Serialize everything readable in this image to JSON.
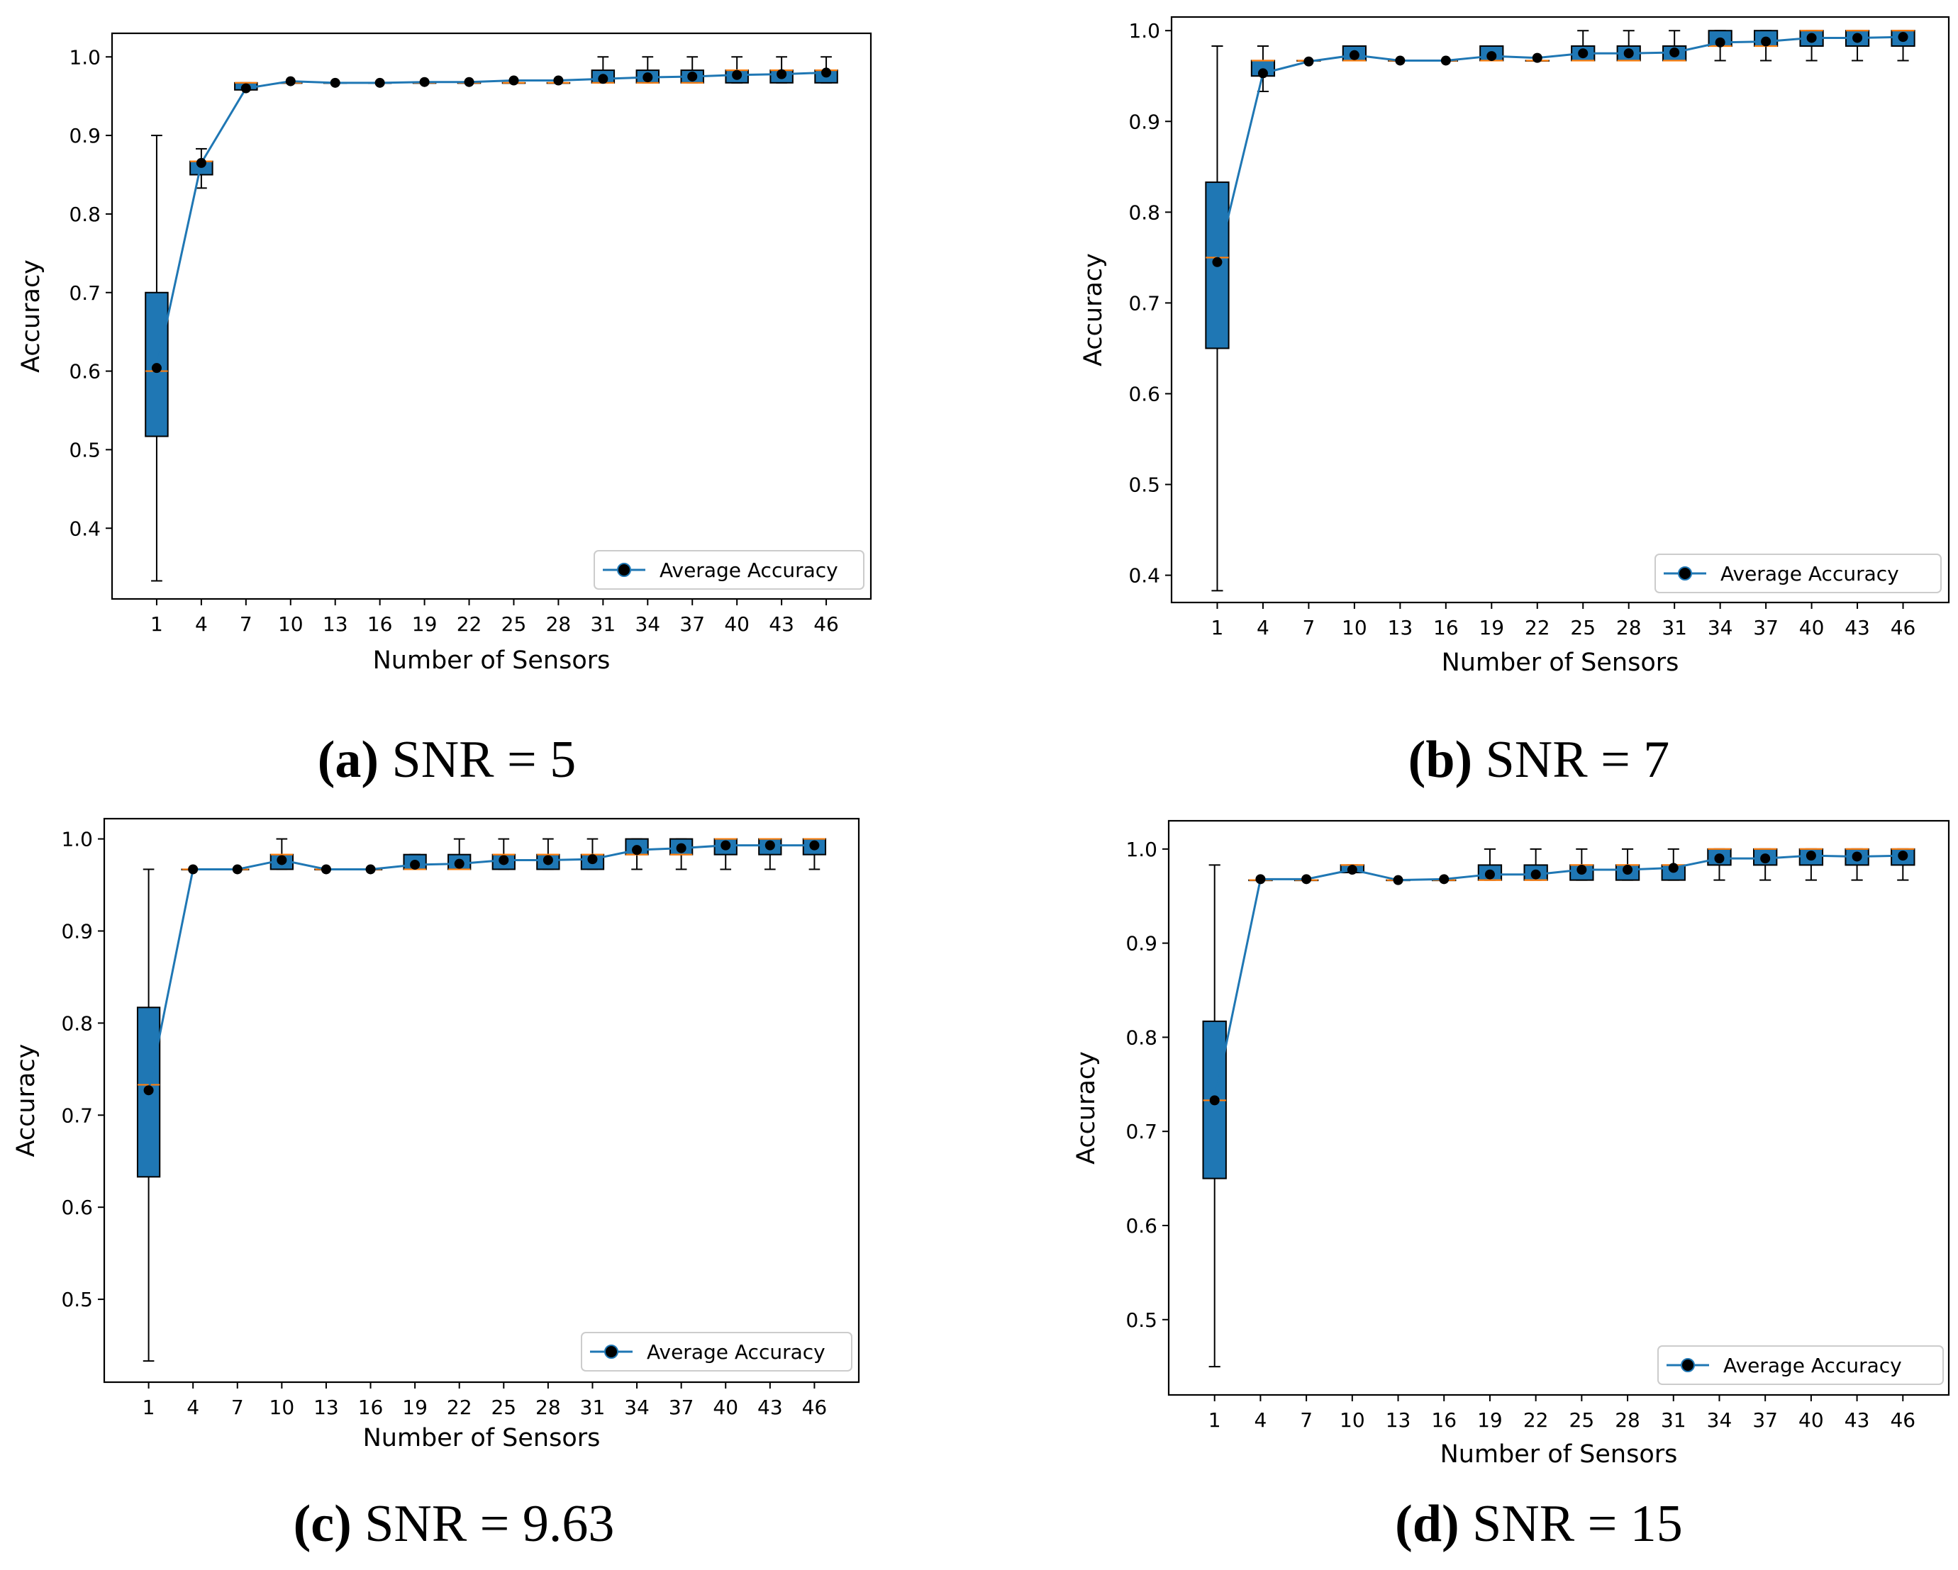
{
  "figure": {
    "colors": {
      "box_fill": "#1f77b4",
      "median": "#ff7f0e",
      "line": "#1f77b4",
      "marker": "#000000",
      "axis": "#000000"
    },
    "captions": [
      {
        "letter": "(a)",
        "text": " SNR = 5"
      },
      {
        "letter": "(b)",
        "text": " SNR = 7"
      },
      {
        "letter": "(c)",
        "text": " SNR = 9.63"
      },
      {
        "letter": "(d)",
        "text": " SNR = 15"
      }
    ]
  },
  "chart_data": [
    {
      "type": "box",
      "title": "(a) SNR = 5",
      "xlabel": "Number of Sensors",
      "ylabel": "Accuracy",
      "ylim": [
        0.31,
        1.03
      ],
      "yticks": [
        0.4,
        0.5,
        0.6,
        0.7,
        0.8,
        0.9,
        1.0
      ],
      "ytick_labels": [
        "0.4",
        "0.5",
        "0.6",
        "0.7",
        "0.8",
        "0.9",
        "1.0"
      ],
      "categories": [
        "1",
        "4",
        "7",
        "10",
        "13",
        "16",
        "19",
        "22",
        "25",
        "28",
        "31",
        "34",
        "37",
        "40",
        "43",
        "46"
      ],
      "legend": {
        "label": "Average Accuracy",
        "position": "lower-right"
      },
      "boxes": [
        {
          "whislo": 0.333,
          "q1": 0.517,
          "med": 0.6,
          "q3": 0.7,
          "whishi": 0.9
        },
        {
          "whislo": 0.833,
          "q1": 0.85,
          "med": 0.867,
          "q3": 0.867,
          "whishi": 0.883
        },
        {
          "whislo": 0.958,
          "q1": 0.958,
          "med": 0.967,
          "q3": 0.967,
          "whishi": 0.967
        },
        {
          "whislo": 0.967,
          "q1": 0.967,
          "med": 0.967,
          "q3": 0.967,
          "whishi": 0.967
        },
        {
          "whislo": 0.967,
          "q1": 0.967,
          "med": 0.967,
          "q3": 0.967,
          "whishi": 0.967
        },
        {
          "whislo": 0.967,
          "q1": 0.967,
          "med": 0.967,
          "q3": 0.967,
          "whishi": 0.967
        },
        {
          "whislo": 0.967,
          "q1": 0.967,
          "med": 0.967,
          "q3": 0.967,
          "whishi": 0.967
        },
        {
          "whislo": 0.967,
          "q1": 0.967,
          "med": 0.967,
          "q3": 0.967,
          "whishi": 0.967
        },
        {
          "whislo": 0.967,
          "q1": 0.967,
          "med": 0.967,
          "q3": 0.967,
          "whishi": 0.967
        },
        {
          "whislo": 0.967,
          "q1": 0.967,
          "med": 0.967,
          "q3": 0.967,
          "whishi": 0.967
        },
        {
          "whislo": 0.967,
          "q1": 0.967,
          "med": 0.967,
          "q3": 0.983,
          "whishi": 1.0
        },
        {
          "whislo": 0.967,
          "q1": 0.967,
          "med": 0.967,
          "q3": 0.983,
          "whishi": 1.0
        },
        {
          "whislo": 0.967,
          "q1": 0.967,
          "med": 0.967,
          "q3": 0.983,
          "whishi": 1.0
        },
        {
          "whislo": 0.967,
          "q1": 0.967,
          "med": 0.983,
          "q3": 0.983,
          "whishi": 1.0
        },
        {
          "whislo": 0.967,
          "q1": 0.967,
          "med": 0.983,
          "q3": 0.983,
          "whishi": 1.0
        },
        {
          "whislo": 0.967,
          "q1": 0.967,
          "med": 0.983,
          "q3": 0.983,
          "whishi": 1.0
        }
      ],
      "series": [
        {
          "name": "Average Accuracy",
          "values": [
            0.604,
            0.865,
            0.96,
            0.969,
            0.967,
            0.967,
            0.968,
            0.968,
            0.97,
            0.97,
            0.972,
            0.974,
            0.975,
            0.977,
            0.978,
            0.98
          ]
        }
      ]
    },
    {
      "type": "box",
      "title": "(b) SNR = 7",
      "xlabel": "Number of Sensors",
      "ylabel": "Accuracy",
      "ylim": [
        0.37,
        1.015
      ],
      "yticks": [
        0.4,
        0.5,
        0.6,
        0.7,
        0.8,
        0.9,
        1.0
      ],
      "ytick_labels": [
        "0.4",
        "0.5",
        "0.6",
        "0.7",
        "0.8",
        "0.9",
        "1.0"
      ],
      "categories": [
        "1",
        "4",
        "7",
        "10",
        "13",
        "16",
        "19",
        "22",
        "25",
        "28",
        "31",
        "34",
        "37",
        "40",
        "43",
        "46"
      ],
      "legend": {
        "label": "Average Accuracy",
        "position": "lower-right"
      },
      "boxes": [
        {
          "whislo": 0.383,
          "q1": 0.65,
          "med": 0.75,
          "q3": 0.833,
          "whishi": 0.983
        },
        {
          "whislo": 0.933,
          "q1": 0.95,
          "med": 0.967,
          "q3": 0.967,
          "whishi": 0.983
        },
        {
          "whislo": 0.967,
          "q1": 0.967,
          "med": 0.967,
          "q3": 0.967,
          "whishi": 0.967
        },
        {
          "whislo": 0.967,
          "q1": 0.967,
          "med": 0.967,
          "q3": 0.983,
          "whishi": 0.983
        },
        {
          "whislo": 0.967,
          "q1": 0.967,
          "med": 0.967,
          "q3": 0.967,
          "whishi": 0.967
        },
        {
          "whislo": 0.967,
          "q1": 0.967,
          "med": 0.967,
          "q3": 0.967,
          "whishi": 0.967
        },
        {
          "whislo": 0.967,
          "q1": 0.967,
          "med": 0.967,
          "q3": 0.983,
          "whishi": 0.983
        },
        {
          "whislo": 0.967,
          "q1": 0.967,
          "med": 0.967,
          "q3": 0.967,
          "whishi": 0.967
        },
        {
          "whislo": 0.967,
          "q1": 0.967,
          "med": 0.967,
          "q3": 0.983,
          "whishi": 1.0
        },
        {
          "whislo": 0.967,
          "q1": 0.967,
          "med": 0.967,
          "q3": 0.983,
          "whishi": 1.0
        },
        {
          "whislo": 0.967,
          "q1": 0.967,
          "med": 0.967,
          "q3": 0.983,
          "whishi": 1.0
        },
        {
          "whislo": 0.967,
          "q1": 0.983,
          "med": 0.983,
          "q3": 1.0,
          "whishi": 1.0
        },
        {
          "whislo": 0.967,
          "q1": 0.983,
          "med": 0.983,
          "q3": 1.0,
          "whishi": 1.0
        },
        {
          "whislo": 0.967,
          "q1": 0.983,
          "med": 1.0,
          "q3": 1.0,
          "whishi": 1.0
        },
        {
          "whislo": 0.967,
          "q1": 0.983,
          "med": 1.0,
          "q3": 1.0,
          "whishi": 1.0
        },
        {
          "whislo": 0.967,
          "q1": 0.983,
          "med": 1.0,
          "q3": 1.0,
          "whishi": 1.0
        }
      ],
      "series": [
        {
          "name": "Average Accuracy",
          "values": [
            0.745,
            0.953,
            0.966,
            0.973,
            0.967,
            0.967,
            0.972,
            0.97,
            0.975,
            0.975,
            0.976,
            0.987,
            0.988,
            0.992,
            0.992,
            0.993
          ]
        }
      ]
    },
    {
      "type": "box",
      "title": "(c) SNR = 9.63",
      "xlabel": "Number of Sensors",
      "ylabel": "Accuracy",
      "ylim": [
        0.41,
        1.022
      ],
      "yticks": [
        0.5,
        0.6,
        0.7,
        0.8,
        0.9,
        1.0
      ],
      "ytick_labels": [
        "0.5",
        "0.6",
        "0.7",
        "0.8",
        "0.9",
        "1.0"
      ],
      "categories": [
        "1",
        "4",
        "7",
        "10",
        "13",
        "16",
        "19",
        "22",
        "25",
        "28",
        "31",
        "34",
        "37",
        "40",
        "43",
        "46"
      ],
      "legend": {
        "label": "Average Accuracy",
        "position": "lower-right"
      },
      "boxes": [
        {
          "whislo": 0.433,
          "q1": 0.633,
          "med": 0.733,
          "q3": 0.817,
          "whishi": 0.967
        },
        {
          "whislo": 0.967,
          "q1": 0.967,
          "med": 0.967,
          "q3": 0.967,
          "whishi": 0.967
        },
        {
          "whislo": 0.967,
          "q1": 0.967,
          "med": 0.967,
          "q3": 0.967,
          "whishi": 0.967
        },
        {
          "whislo": 0.967,
          "q1": 0.967,
          "med": 0.983,
          "q3": 0.983,
          "whishi": 1.0
        },
        {
          "whislo": 0.967,
          "q1": 0.967,
          "med": 0.967,
          "q3": 0.967,
          "whishi": 0.967
        },
        {
          "whislo": 0.967,
          "q1": 0.967,
          "med": 0.967,
          "q3": 0.967,
          "whishi": 0.967
        },
        {
          "whislo": 0.967,
          "q1": 0.967,
          "med": 0.967,
          "q3": 0.983,
          "whishi": 0.983
        },
        {
          "whislo": 0.967,
          "q1": 0.967,
          "med": 0.967,
          "q3": 0.983,
          "whishi": 1.0
        },
        {
          "whislo": 0.967,
          "q1": 0.967,
          "med": 0.983,
          "q3": 0.983,
          "whishi": 1.0
        },
        {
          "whislo": 0.967,
          "q1": 0.967,
          "med": 0.983,
          "q3": 0.983,
          "whishi": 1.0
        },
        {
          "whislo": 0.967,
          "q1": 0.967,
          "med": 0.983,
          "q3": 0.983,
          "whishi": 1.0
        },
        {
          "whislo": 0.967,
          "q1": 0.983,
          "med": 0.983,
          "q3": 1.0,
          "whishi": 1.0
        },
        {
          "whislo": 0.967,
          "q1": 0.983,
          "med": 0.983,
          "q3": 1.0,
          "whishi": 1.0
        },
        {
          "whislo": 0.967,
          "q1": 0.983,
          "med": 1.0,
          "q3": 1.0,
          "whishi": 1.0
        },
        {
          "whislo": 0.967,
          "q1": 0.983,
          "med": 1.0,
          "q3": 1.0,
          "whishi": 1.0
        },
        {
          "whislo": 0.967,
          "q1": 0.983,
          "med": 1.0,
          "q3": 1.0,
          "whishi": 1.0
        }
      ],
      "series": [
        {
          "name": "Average Accuracy",
          "values": [
            0.727,
            0.967,
            0.967,
            0.977,
            0.967,
            0.967,
            0.972,
            0.973,
            0.977,
            0.977,
            0.978,
            0.988,
            0.99,
            0.993,
            0.993,
            0.993
          ]
        }
      ]
    },
    {
      "type": "box",
      "title": "(d) SNR = 15",
      "xlabel": "Number of Sensors",
      "ylabel": "Accuracy",
      "ylim": [
        0.42,
        1.03
      ],
      "yticks": [
        0.5,
        0.6,
        0.7,
        0.8,
        0.9,
        1.0
      ],
      "ytick_labels": [
        "0.5",
        "0.6",
        "0.7",
        "0.8",
        "0.9",
        "1.0"
      ],
      "categories": [
        "1",
        "4",
        "7",
        "10",
        "13",
        "16",
        "19",
        "22",
        "25",
        "28",
        "31",
        "34",
        "37",
        "40",
        "43",
        "46"
      ],
      "legend": {
        "label": "Average Accuracy",
        "position": "lower-right"
      },
      "boxes": [
        {
          "whislo": 0.45,
          "q1": 0.65,
          "med": 0.733,
          "q3": 0.817,
          "whishi": 0.983
        },
        {
          "whislo": 0.967,
          "q1": 0.967,
          "med": 0.967,
          "q3": 0.967,
          "whishi": 0.967
        },
        {
          "whislo": 0.967,
          "q1": 0.967,
          "med": 0.967,
          "q3": 0.967,
          "whishi": 0.967
        },
        {
          "whislo": 0.975,
          "q1": 0.975,
          "med": 0.983,
          "q3": 0.983,
          "whishi": 0.983
        },
        {
          "whislo": 0.967,
          "q1": 0.967,
          "med": 0.967,
          "q3": 0.967,
          "whishi": 0.967
        },
        {
          "whislo": 0.967,
          "q1": 0.967,
          "med": 0.967,
          "q3": 0.967,
          "whishi": 0.967
        },
        {
          "whislo": 0.967,
          "q1": 0.967,
          "med": 0.967,
          "q3": 0.983,
          "whishi": 1.0
        },
        {
          "whislo": 0.967,
          "q1": 0.967,
          "med": 0.967,
          "q3": 0.983,
          "whishi": 1.0
        },
        {
          "whislo": 0.967,
          "q1": 0.967,
          "med": 0.983,
          "q3": 0.983,
          "whishi": 1.0
        },
        {
          "whislo": 0.967,
          "q1": 0.967,
          "med": 0.983,
          "q3": 0.983,
          "whishi": 1.0
        },
        {
          "whislo": 0.967,
          "q1": 0.967,
          "med": 0.983,
          "q3": 0.983,
          "whishi": 1.0
        },
        {
          "whislo": 0.967,
          "q1": 0.983,
          "med": 1.0,
          "q3": 1.0,
          "whishi": 1.0
        },
        {
          "whislo": 0.967,
          "q1": 0.983,
          "med": 1.0,
          "q3": 1.0,
          "whishi": 1.0
        },
        {
          "whislo": 0.967,
          "q1": 0.983,
          "med": 1.0,
          "q3": 1.0,
          "whishi": 1.0
        },
        {
          "whislo": 0.967,
          "q1": 0.983,
          "med": 1.0,
          "q3": 1.0,
          "whishi": 1.0
        },
        {
          "whislo": 0.967,
          "q1": 0.983,
          "med": 1.0,
          "q3": 1.0,
          "whishi": 1.0
        }
      ],
      "series": [
        {
          "name": "Average Accuracy",
          "values": [
            0.733,
            0.968,
            0.968,
            0.978,
            0.967,
            0.968,
            0.973,
            0.973,
            0.978,
            0.978,
            0.98,
            0.99,
            0.99,
            0.993,
            0.992,
            0.993
          ]
        }
      ]
    }
  ]
}
